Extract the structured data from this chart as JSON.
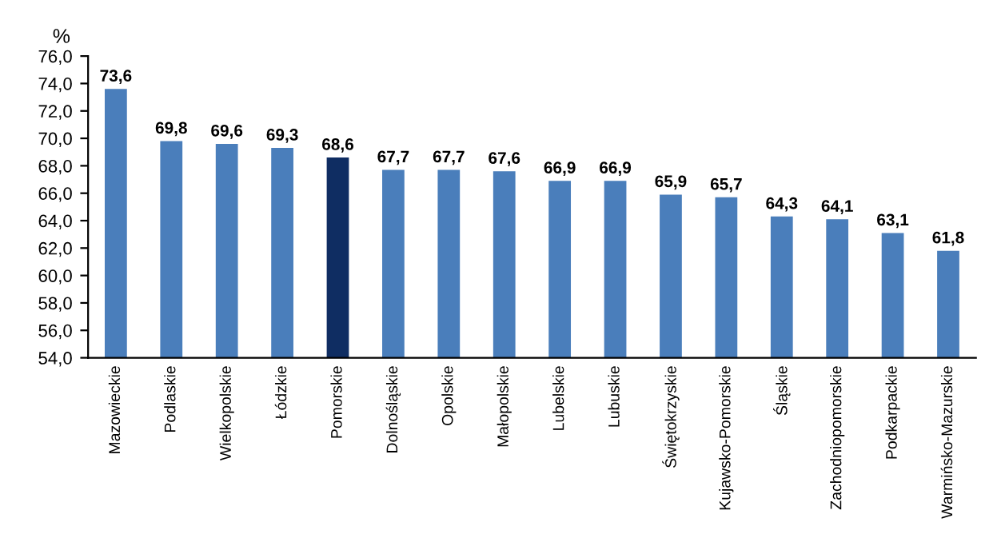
{
  "chart_data": {
    "type": "bar",
    "ylabel": "%",
    "categories": [
      "Mazowieckie",
      "Podlaskie",
      "Wielkopolskie",
      "Łódzkie",
      "Pomorskie",
      "Dolnośląskie",
      "Opolskie",
      "Małopolskie",
      "Lubelskie",
      "Lubuskie",
      "Świętokrzyskie",
      "Kujawsko-Pomorskie",
      "Śląskie",
      "Zachodniopomorskie",
      "Podkarpackie",
      "Warmińsko-Mazurskie"
    ],
    "values": [
      73.6,
      69.8,
      69.6,
      69.3,
      68.6,
      67.7,
      67.7,
      67.6,
      66.9,
      66.9,
      65.9,
      65.7,
      64.3,
      64.1,
      63.1,
      61.8
    ],
    "value_labels": [
      "73,6",
      "69,8",
      "69,6",
      "69,3",
      "68,6",
      "67,7",
      "67,7",
      "67,6",
      "66,9",
      "66,9",
      "65,9",
      "65,7",
      "64,3",
      "64,1",
      "63,1",
      "61,8"
    ],
    "colors": [
      "#4a7ebb",
      "#4a7ebb",
      "#4a7ebb",
      "#4a7ebb",
      "#0f2d62",
      "#4a7ebb",
      "#4a7ebb",
      "#4a7ebb",
      "#4a7ebb",
      "#4a7ebb",
      "#4a7ebb",
      "#4a7ebb",
      "#4a7ebb",
      "#4a7ebb",
      "#4a7ebb",
      "#4a7ebb"
    ],
    "ylim": [
      54,
      76
    ],
    "yticks": [
      {
        "value": 54,
        "label": "54,0"
      },
      {
        "value": 56,
        "label": "56,0"
      },
      {
        "value": 58,
        "label": "58,0"
      },
      {
        "value": 60,
        "label": "60,0"
      },
      {
        "value": 62,
        "label": "62,0"
      },
      {
        "value": 64,
        "label": "64,0"
      },
      {
        "value": 66,
        "label": "66,0"
      },
      {
        "value": 68,
        "label": "68,0"
      },
      {
        "value": 70,
        "label": "70,0"
      },
      {
        "value": 72,
        "label": "72,0"
      },
      {
        "value": 74,
        "label": "74,0"
      },
      {
        "value": 76,
        "label": "76,0"
      }
    ],
    "grid": false
  }
}
